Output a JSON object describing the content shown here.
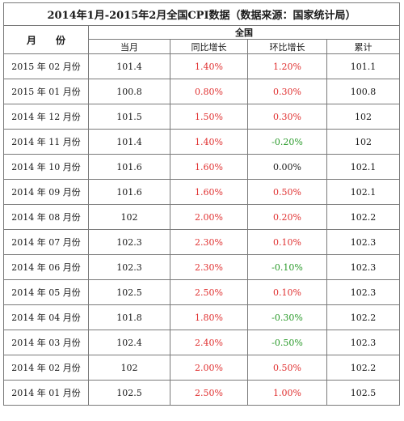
{
  "table": {
    "title": "2014年1月-2015年2月全国CPI数据（数据来源：国家统计局）",
    "month_header": "月　　份",
    "group_header": "全国",
    "col_current": "当月",
    "col_yoy": "同比增长",
    "col_mom": "环比增长",
    "col_cumulative": "累计",
    "colors": {
      "positive": "#e03030",
      "negative": "#2a9a2a",
      "zero": "#1a1a1a"
    },
    "rows": [
      {
        "month": "2015 年 02 月份",
        "current": "101.4",
        "yoy": "1.40%",
        "mom": "1.20%",
        "cumulative": "101.1",
        "yoy_sign": "red",
        "mom_sign": "red"
      },
      {
        "month": "2015 年 01 月份",
        "current": "100.8",
        "yoy": "0.80%",
        "mom": "0.30%",
        "cumulative": "100.8",
        "yoy_sign": "red",
        "mom_sign": "red"
      },
      {
        "month": "2014 年 12 月份",
        "current": "101.5",
        "yoy": "1.50%",
        "mom": "0.30%",
        "cumulative": "102",
        "yoy_sign": "red",
        "mom_sign": "red"
      },
      {
        "month": "2014 年 11 月份",
        "current": "101.4",
        "yoy": "1.40%",
        "mom": "-0.20%",
        "cumulative": "102",
        "yoy_sign": "red",
        "mom_sign": "green"
      },
      {
        "month": "2014 年 10 月份",
        "current": "101.6",
        "yoy": "1.60%",
        "mom": "0.00%",
        "cumulative": "102.1",
        "yoy_sign": "red",
        "mom_sign": "black"
      },
      {
        "month": "2014 年 09 月份",
        "current": "101.6",
        "yoy": "1.60%",
        "mom": "0.50%",
        "cumulative": "102.1",
        "yoy_sign": "red",
        "mom_sign": "red"
      },
      {
        "month": "2014 年 08 月份",
        "current": "102",
        "yoy": "2.00%",
        "mom": "0.20%",
        "cumulative": "102.2",
        "yoy_sign": "red",
        "mom_sign": "red"
      },
      {
        "month": "2014 年 07 月份",
        "current": "102.3",
        "yoy": "2.30%",
        "mom": "0.10%",
        "cumulative": "102.3",
        "yoy_sign": "red",
        "mom_sign": "red"
      },
      {
        "month": "2014 年 06 月份",
        "current": "102.3",
        "yoy": "2.30%",
        "mom": "-0.10%",
        "cumulative": "102.3",
        "yoy_sign": "red",
        "mom_sign": "green"
      },
      {
        "month": "2014 年 05 月份",
        "current": "102.5",
        "yoy": "2.50%",
        "mom": "0.10%",
        "cumulative": "102.3",
        "yoy_sign": "red",
        "mom_sign": "red"
      },
      {
        "month": "2014 年 04 月份",
        "current": "101.8",
        "yoy": "1.80%",
        "mom": "-0.30%",
        "cumulative": "102.2",
        "yoy_sign": "red",
        "mom_sign": "green"
      },
      {
        "month": "2014 年 03 月份",
        "current": "102.4",
        "yoy": "2.40%",
        "mom": "-0.50%",
        "cumulative": "102.3",
        "yoy_sign": "red",
        "mom_sign": "green"
      },
      {
        "month": "2014 年 02 月份",
        "current": "102",
        "yoy": "2.00%",
        "mom": "0.50%",
        "cumulative": "102.2",
        "yoy_sign": "red",
        "mom_sign": "red"
      },
      {
        "month": "2014 年 01 月份",
        "current": "102.5",
        "yoy": "2.50%",
        "mom": "1.00%",
        "cumulative": "102.5",
        "yoy_sign": "red",
        "mom_sign": "red"
      }
    ]
  }
}
